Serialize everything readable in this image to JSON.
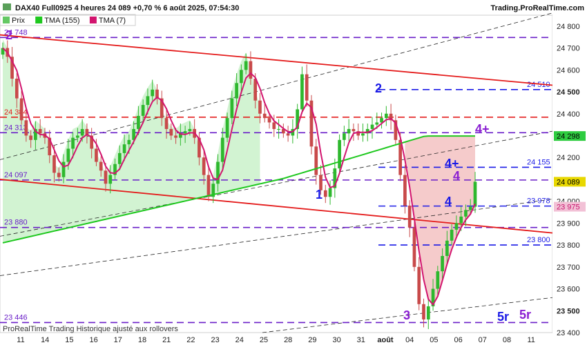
{
  "header": {
    "symbol": "DAX40 Full0925 4 heures 24 089 +0,70 % 6 août 2025, 07:54:30",
    "site": "Trading.ProRealTime.com"
  },
  "legend": [
    {
      "label": "Prix",
      "color": "#64c864"
    },
    {
      "label": "TMA (155)",
      "color": "#1ec81e"
    },
    {
      "label": "TMA (7)",
      "color": "#d2146e"
    }
  ],
  "footer": "ProRealTime Trading  Historique ajusté aux rollovers",
  "colors": {
    "up": "#2eb82e",
    "down": "#c84a4a",
    "tma155": "#1ec81e",
    "tma7": "#d2146e",
    "trend": "#e41a1a",
    "level": "#6a1ec8",
    "blue_level": "#1a1ae6",
    "label_blue": "#1a1ae6",
    "label_purple": "#8a1ed2"
  },
  "chart_data": {
    "type": "candlestick",
    "ylim": [
      23400,
      24850
    ],
    "y_ticks": [
      "24 800",
      "24 700",
      "24 600",
      "24 500",
      "24 400",
      "24 300",
      "24 200",
      "24 100",
      "24 000",
      "23 900",
      "23 800",
      "23 700",
      "23 600",
      "23 500",
      "23 400"
    ],
    "x_ticks": [
      "11",
      "14",
      "15",
      "16",
      "17",
      "18",
      "21",
      "22",
      "23",
      "24",
      "25",
      "28",
      "29",
      "30",
      "31",
      "août",
      "04",
      "05",
      "06",
      "07",
      "08",
      "11"
    ],
    "closes": [
      24700,
      24660,
      24560,
      24470,
      24370,
      24300,
      24280,
      24330,
      24310,
      24290,
      24210,
      24130,
      24110,
      24180,
      24240,
      24290,
      24300,
      24330,
      24300,
      24240,
      24180,
      24140,
      24080,
      24120,
      24170,
      24220,
      24260,
      24280,
      24330,
      24390,
      24440,
      24480,
      24510,
      24470,
      24380,
      24330,
      24300,
      24290,
      24310,
      24320,
      24330,
      24290,
      24200,
      24120,
      24020,
      24080,
      24180,
      24290,
      24380,
      24470,
      24540,
      24600,
      24640,
      24560,
      24460,
      24400,
      24380,
      24360,
      24330,
      24330,
      24310,
      24300,
      24330,
      24420,
      24580,
      24460,
      24250,
      24120,
      24050,
      24020,
      24060,
      24150,
      24280,
      24310,
      24330,
      24320,
      24300,
      24310,
      24330,
      24350,
      24360,
      24380,
      24400,
      24370,
      24280,
      24120,
      23980,
      23880,
      23700,
      23530,
      23460,
      23520,
      23600,
      23680,
      23750,
      23820,
      23870,
      23900,
      23930,
      23960,
      23975,
      24089
    ],
    "current_price": "24 089",
    "tma155_last": "24 298",
    "tma7_last": "23 975",
    "levels": [
      {
        "value": 24748,
        "label": "24 748",
        "style": "purple"
      },
      {
        "value": 24510,
        "label": "24 510",
        "style": "blue"
      },
      {
        "value": 24384,
        "label": "24 384",
        "style": "red"
      },
      {
        "value": 24313,
        "label": "24 313",
        "style": "purple"
      },
      {
        "value": 24155,
        "label": "24 155",
        "style": "blue"
      },
      {
        "value": 24097,
        "label": "24 097",
        "style": "purple"
      },
      {
        "value": 23978,
        "label": "23 978",
        "style": "blue"
      },
      {
        "value": 23880,
        "label": "23 880",
        "style": "purple"
      },
      {
        "value": 23800,
        "label": "23 800",
        "style": "blue"
      },
      {
        "value": 23446,
        "label": "23 446",
        "style": "purple"
      }
    ],
    "wave_labels": [
      "2",
      "1",
      "2",
      "3",
      "4",
      "4",
      "4+",
      "4+",
      "5r",
      "5r"
    ]
  }
}
